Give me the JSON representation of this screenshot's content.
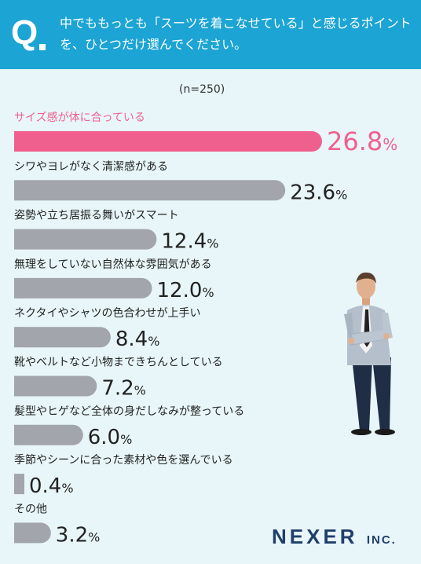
{
  "question": {
    "mark": "Q",
    "text": "中でももっとも「スーツを着こなせている」と感じるポイントを、ひとつだけ選んでください。"
  },
  "sample_note": "(n=250)",
  "brand": {
    "name": "NEXER",
    "suffix": "INC."
  },
  "colors": {
    "header": "#1ba4d4",
    "background": "#e8f6f9",
    "highlight": "#f0608e",
    "bar": "#a3a5ac",
    "text": "#222222"
  },
  "chart_data": {
    "type": "bar",
    "orientation": "horizontal",
    "unit": "%",
    "categories": [
      "サイズ感が体に合っている",
      "シワやヨレがなく清潔感がある",
      "姿勢や立ち居振る舞いがスマート",
      "無理をしていない自然体な雰囲気がある",
      "ネクタイやシャツの色合わせが上手い",
      "靴やベルトなど小物まできちんとしている",
      "髪型やヒゲなど全体の身だしなみが整っている",
      "季節やシーンに合った素材や色を選んでいる",
      "その他"
    ],
    "values": [
      26.8,
      23.6,
      12.4,
      12.0,
      8.4,
      7.2,
      6.0,
      0.4,
      3.2
    ],
    "value_labels": [
      "26.8",
      "23.6",
      "12.4",
      "12.0",
      "8.4",
      "7.2",
      "6.0",
      "0.4",
      "3.2"
    ],
    "highlight_index": 0
  }
}
